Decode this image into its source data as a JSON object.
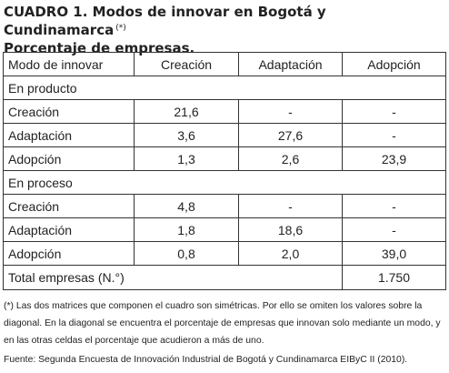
{
  "title": {
    "line1": "CUADRO 1. Modos de innovar en Bogotá y Cundinamarca",
    "mark": "(*)",
    "line2": "Porcentaje de empresas."
  },
  "table": {
    "headers": [
      "Modo de innovar",
      "Creación",
      "Adaptación",
      "Adopción"
    ],
    "section_product": "En producto",
    "product_rows": [
      {
        "label": "Creación",
        "creacion": "21,6",
        "adaptacion": "-",
        "adopcion": "-"
      },
      {
        "label": "Adaptación",
        "creacion": "3,6",
        "adaptacion": "27,6",
        "adopcion": "-"
      },
      {
        "label": "Adopción",
        "creacion": "1,3",
        "adaptacion": "2,6",
        "adopcion": "23,9"
      }
    ],
    "section_process": "En proceso",
    "process_rows": [
      {
        "label": "Creación",
        "creacion": "4,8",
        "adaptacion": "-",
        "adopcion": "-"
      },
      {
        "label": "Adaptación",
        "creacion": "1,8",
        "adaptacion": "18,6",
        "adopcion": "-"
      },
      {
        "label": "Adopción",
        "creacion": "0,8",
        "adaptacion": "2,0",
        "adopcion": "39,0"
      }
    ],
    "total_label": "Total empresas (N.°)",
    "total_value": "1.750"
  },
  "note": "(*) Las dos matrices que componen el cuadro son simétricas. Por ello se omiten los valores sobre la diagonal. En la diagonal se encuentra el porcentaje de empresas que innovan solo mediante un modo, y en las otras celdas el porcentaje que acudieron a más de uno.",
  "source": "Fuente: Segunda Encuesta de Innovación Industrial de Bogotá y Cundinamarca EIByC II (2010)."
}
